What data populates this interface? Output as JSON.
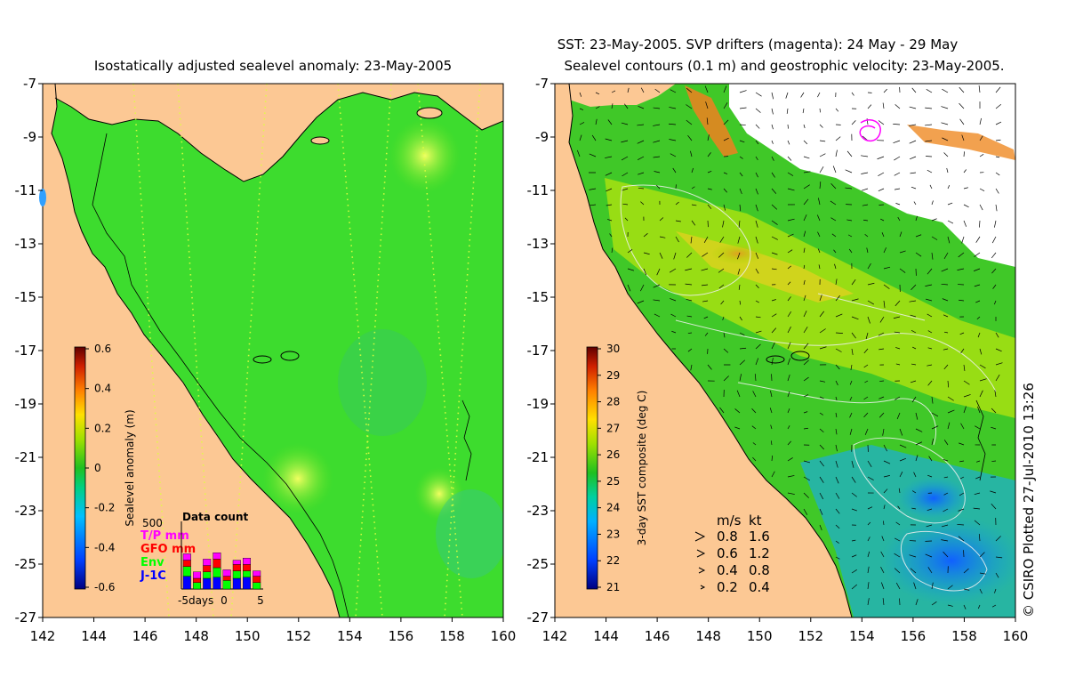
{
  "left_panel": {
    "title": "Isostatically adjusted sealevel anomaly: 23-May-2005",
    "colorbar": {
      "label": "Sealevel anomaly (m)",
      "ticks": [
        "0.6",
        "0.4",
        "0.2",
        "0",
        "-0.2",
        "-0.4",
        "-0.6"
      ],
      "range": [
        -0.6,
        0.6
      ]
    },
    "data_count": {
      "title": "Data count",
      "max_label": "500",
      "legend": [
        {
          "label": "T/P mm",
          "color": "#ff00ff"
        },
        {
          "label": "GFO mm",
          "color": "#ff0000"
        },
        {
          "label": "Env",
          "color": "#00ff00"
        },
        {
          "label": "J-1C",
          "color": "#0000ff"
        }
      ],
      "x_labels": [
        "-5days",
        "0",
        "5"
      ],
      "bars": [
        [
          60,
          60,
          90,
          120
        ],
        [
          60,
          40,
          60,
          0
        ],
        [
          60,
          60,
          60,
          100
        ],
        [
          60,
          80,
          90,
          110
        ],
        [
          60,
          40,
          80,
          0
        ],
        [
          40,
          60,
          70,
          100
        ],
        [
          60,
          60,
          60,
          110
        ],
        [
          50,
          60,
          60,
          0
        ]
      ]
    }
  },
  "right_panel": {
    "title_line1": "SST: 23-May-2005. SVP drifters (magenta): 24 May - 29 May",
    "title_line2": "Sealevel contours (0.1 m) and geostrophic velocity: 23-May-2005.",
    "colorbar": {
      "label": "3-day SST composite (deg C)",
      "ticks": [
        "30",
        "29",
        "28",
        "27",
        "26",
        "25",
        "24",
        "23",
        "22",
        "21"
      ],
      "range": [
        21,
        30
      ]
    },
    "velocity_legend": {
      "header_ms": "m/s",
      "header_kt": "kt",
      "rows": [
        {
          "ms": "0.8",
          "kt": "1.6"
        },
        {
          "ms": "0.6",
          "kt": "1.2"
        },
        {
          "ms": "0.4",
          "kt": "0.8"
        },
        {
          "ms": "0.2",
          "kt": "0.4"
        }
      ]
    },
    "credit": "© CSIRO Plotted 27-Jul-2010 13:26"
  },
  "axes": {
    "lat_ticks": [
      "-7",
      "-9",
      "-11",
      "-13",
      "-15",
      "-17",
      "-19",
      "-21",
      "-23",
      "-25",
      "-27"
    ],
    "lon_ticks": [
      "142",
      "144",
      "146",
      "148",
      "150",
      "152",
      "154",
      "156",
      "158",
      "160"
    ],
    "lon_range": [
      142,
      160
    ],
    "lat_range": [
      -27,
      -7
    ]
  },
  "colors": {
    "land": "#fcc894",
    "ocean_slа": "#3ddc2e",
    "background": "#ffffff"
  }
}
